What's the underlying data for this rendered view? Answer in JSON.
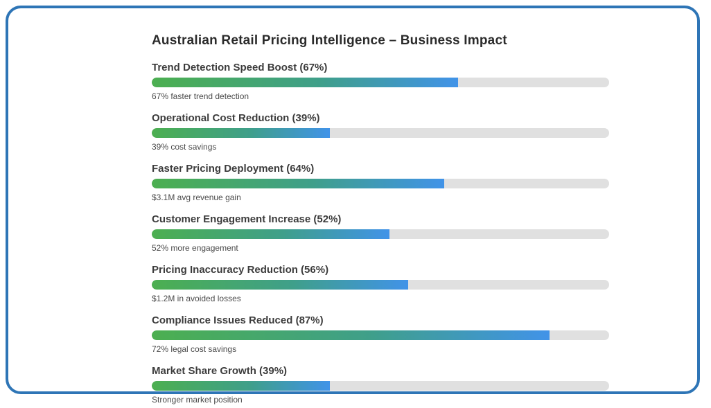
{
  "card": {
    "border_color": "#2e75b6",
    "background": "#ffffff"
  },
  "chart_data": {
    "type": "bar",
    "orientation": "horizontal",
    "title": "Australian Retail Pricing Intelligence – Business Impact",
    "value_range": [
      0,
      100
    ],
    "grid": false,
    "legend": false,
    "colors": {
      "fill_gradient_start": "#4caf50",
      "fill_gradient_mid": "#3f9f8a",
      "fill_gradient_end": "#4193e8",
      "track": "#e0e0e0",
      "label_text": "#3c3c3c",
      "caption_text": "#4a4a4a"
    },
    "bars": [
      {
        "label": "Trend Detection Speed Boost (67%)",
        "value": 67,
        "caption": "67% faster trend detection"
      },
      {
        "label": "Operational Cost Reduction (39%)",
        "value": 39,
        "caption": "39% cost savings"
      },
      {
        "label": "Faster Pricing Deployment (64%)",
        "value": 64,
        "caption": "$3.1M avg revenue gain"
      },
      {
        "label": "Customer Engagement Increase (52%)",
        "value": 52,
        "caption": "52% more engagement"
      },
      {
        "label": "Pricing Inaccuracy Reduction (56%)",
        "value": 56,
        "caption": "$1.2M in avoided losses"
      },
      {
        "label": "Compliance Issues Reduced (87%)",
        "value": 87,
        "caption": "72% legal cost savings"
      },
      {
        "label": "Market Share Growth (39%)",
        "value": 39,
        "caption": "Stronger market position"
      }
    ]
  }
}
